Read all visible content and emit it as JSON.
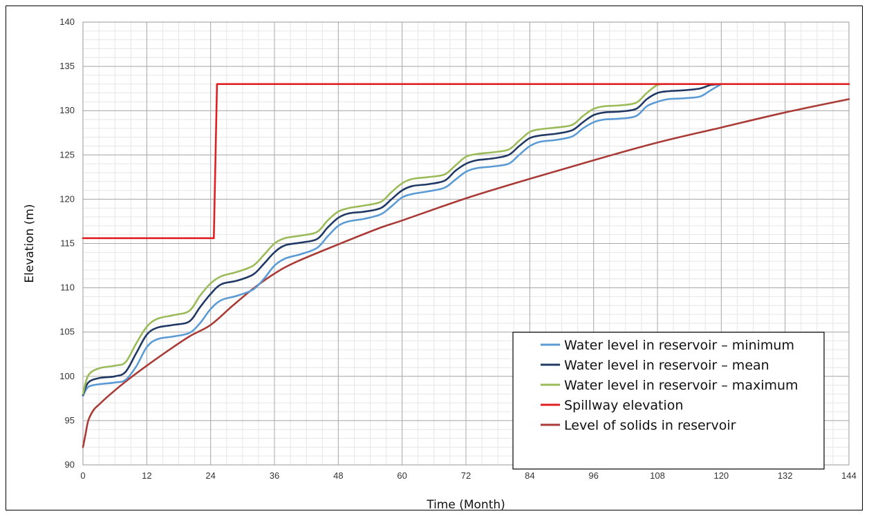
{
  "chart_data": {
    "type": "line",
    "xlabel": "Time (Month)",
    "ylabel": "Elevation (m)",
    "xlim": [
      0,
      144
    ],
    "ylim": [
      90,
      140
    ],
    "xticks": [
      0,
      12,
      24,
      36,
      48,
      60,
      72,
      84,
      96,
      108,
      120,
      132,
      144
    ],
    "yticks": [
      90,
      95,
      100,
      105,
      110,
      115,
      120,
      125,
      130,
      135,
      140
    ],
    "grid": true,
    "minor_grid": true,
    "legend_position": "bottom-right",
    "series": [
      {
        "name": "Water level in reservoir – minimum",
        "color": "#5b9bd5",
        "x": [
          0,
          1,
          3,
          6,
          8,
          10,
          12,
          14,
          17,
          20,
          22,
          24,
          26,
          29,
          32,
          34,
          36,
          38,
          41,
          44,
          46,
          48,
          50,
          53,
          56,
          58,
          60,
          62,
          65,
          68,
          70,
          72,
          74,
          77,
          80,
          82,
          84,
          86,
          89,
          92,
          94,
          96,
          98,
          101,
          104,
          106,
          108,
          110,
          113,
          116,
          118,
          120
        ],
        "y": [
          97.8,
          98.8,
          99.1,
          99.3,
          99.6,
          101.1,
          103.3,
          104.2,
          104.5,
          104.9,
          106.0,
          107.6,
          108.6,
          109.1,
          109.8,
          111.0,
          112.5,
          113.3,
          113.8,
          114.5,
          115.8,
          117.0,
          117.5,
          117.8,
          118.3,
          119.2,
          120.2,
          120.6,
          120.9,
          121.3,
          122.2,
          123.1,
          123.5,
          123.7,
          124.0,
          125.0,
          126.0,
          126.5,
          126.7,
          127.1,
          128.0,
          128.7,
          129.0,
          129.1,
          129.4,
          130.5,
          131.0,
          131.3,
          131.4,
          131.6,
          132.3,
          133.0
        ]
      },
      {
        "name": "Water level in reservoir – mean",
        "color": "#1f3864",
        "x": [
          0,
          1,
          3,
          6,
          8,
          10,
          12,
          14,
          17,
          20,
          22,
          24,
          26,
          29,
          32,
          34,
          36,
          38,
          41,
          44,
          46,
          48,
          50,
          53,
          56,
          58,
          60,
          62,
          65,
          68,
          70,
          72,
          74,
          77,
          80,
          82,
          84,
          86,
          89,
          92,
          94,
          96,
          98,
          101,
          104,
          106,
          108,
          110,
          113,
          116,
          118,
          120
        ],
        "y": [
          97.9,
          99.3,
          99.8,
          100.0,
          100.5,
          102.6,
          104.7,
          105.5,
          105.8,
          106.2,
          107.8,
          109.3,
          110.4,
          110.8,
          111.5,
          112.7,
          114.0,
          114.8,
          115.1,
          115.5,
          116.8,
          117.9,
          118.4,
          118.6,
          119.0,
          120.0,
          121.0,
          121.5,
          121.7,
          122.1,
          123.2,
          124.0,
          124.4,
          124.6,
          125.0,
          126.0,
          126.9,
          127.2,
          127.4,
          127.8,
          128.7,
          129.5,
          129.8,
          129.9,
          130.2,
          131.3,
          132.0,
          132.2,
          132.3,
          132.5,
          132.9,
          133.0
        ]
      },
      {
        "name": "Water level in reservoir – maximum",
        "color": "#9bbb59",
        "x": [
          0,
          1,
          3,
          6,
          8,
          10,
          12,
          14,
          17,
          20,
          22,
          24,
          26,
          29,
          32,
          34,
          36,
          38,
          41,
          44,
          46,
          48,
          50,
          53,
          56,
          58,
          60,
          62,
          65,
          68,
          70,
          72,
          74,
          77,
          80,
          82,
          84,
          86,
          89,
          92,
          94,
          96,
          98,
          101,
          104,
          106,
          108,
          110
        ],
        "y": [
          98.0,
          100.1,
          100.9,
          101.2,
          101.6,
          103.7,
          105.6,
          106.5,
          106.9,
          107.4,
          109.1,
          110.5,
          111.3,
          111.8,
          112.5,
          113.7,
          115.0,
          115.6,
          115.9,
          116.3,
          117.6,
          118.6,
          119.0,
          119.3,
          119.7,
          120.8,
          121.8,
          122.3,
          122.5,
          122.8,
          123.8,
          124.8,
          125.1,
          125.3,
          125.6,
          126.6,
          127.6,
          127.9,
          128.1,
          128.4,
          129.4,
          130.2,
          130.5,
          130.6,
          130.9,
          132.0,
          132.9,
          133.0
        ]
      },
      {
        "name": "Spillway elevation",
        "color": "#e02020",
        "x": [
          0,
          24.6,
          25.2,
          144
        ],
        "y": [
          115.6,
          115.6,
          133.0,
          133.0
        ]
      },
      {
        "name": "Level of solids in reservoir",
        "color": "#a93a35",
        "x": [
          0,
          0.5,
          1,
          2,
          3,
          5,
          8,
          12,
          16,
          20,
          24,
          28,
          32,
          36,
          40,
          48,
          56,
          60,
          72,
          84,
          96,
          108,
          120,
          132,
          144
        ],
        "y": [
          92.0,
          93.5,
          95.0,
          96.2,
          96.8,
          97.9,
          99.4,
          101.2,
          102.9,
          104.5,
          105.8,
          107.9,
          109.9,
          111.6,
          112.9,
          114.9,
          116.8,
          117.6,
          120.1,
          122.3,
          124.4,
          126.4,
          128.1,
          129.8,
          131.3
        ]
      }
    ]
  }
}
